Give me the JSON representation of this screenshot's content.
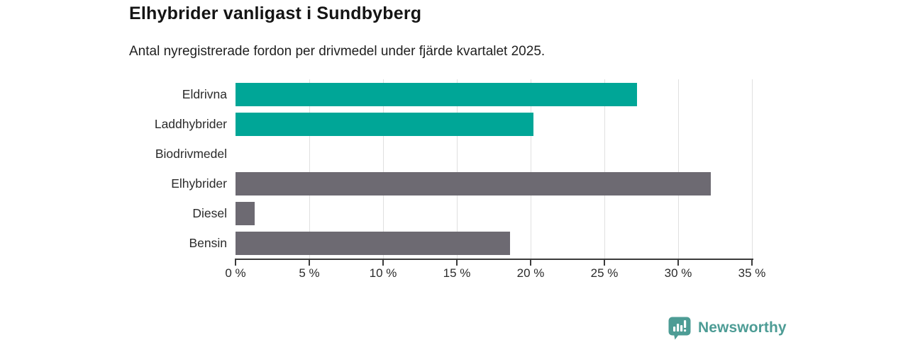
{
  "header": {
    "title": "Elhybrider vanligast i Sundbyberg",
    "subtitle": "Antal nyregistrerade fordon per drivmedel under fjärde kvartalet 2025."
  },
  "chart_data": {
    "type": "bar",
    "orientation": "horizontal",
    "title": "Elhybrider vanligast i Sundbyberg",
    "subtitle": "Antal nyregistrerade fordon per drivmedel under fjärde kvartalet 2025.",
    "categories": [
      "Eldrivna",
      "Laddhybrider",
      "Biodrivmedel",
      "Elhybrider",
      "Diesel",
      "Bensin"
    ],
    "values": [
      27.2,
      20.2,
      0,
      32.2,
      1.3,
      18.6
    ],
    "unit": "%",
    "xlabel": "",
    "ylabel": "",
    "xlim": [
      0,
      35
    ],
    "x_tick_step": 5,
    "x_tick_labels": [
      "0 %",
      "5 %",
      "10 %",
      "15 %",
      "20 %",
      "25 %",
      "30 %",
      "35 %"
    ],
    "bar_colors": [
      "#00a697",
      "#00a697",
      "#00a697",
      "#6d6a72",
      "#6d6a72",
      "#6d6a72"
    ],
    "grid": "vertical-gridlines",
    "legend": "none"
  },
  "branding": {
    "logo_text": "Newsworthy",
    "logo_icon": "bar-chart-speech-bubble-icon",
    "logo_color": "#4d9c95"
  },
  "colors": {
    "bar_teal": "#00a697",
    "bar_gray": "#6d6a72",
    "gridline": "#e0e0e0",
    "axis": "#3b3b3b",
    "text": "#2b2b2b",
    "title_text": "#141414"
  }
}
